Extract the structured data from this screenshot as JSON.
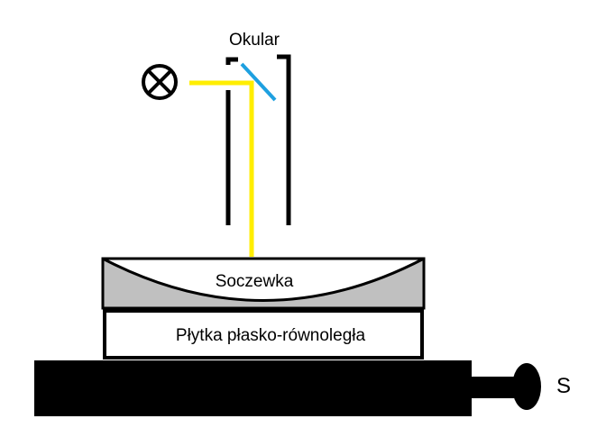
{
  "labels": {
    "eyepiece": "Okular",
    "lens": "Soczewka",
    "plate": "Płytka płasko-równoległa",
    "screw": "S"
  },
  "icons": {
    "light_source": "lamp-cross-circle-icon"
  },
  "colors": {
    "light_beam": "#ffee00",
    "mirror": "#1ea0e0",
    "lens_gap": "#c0c0c0",
    "outline": "#000000",
    "background": "#ffffff"
  }
}
